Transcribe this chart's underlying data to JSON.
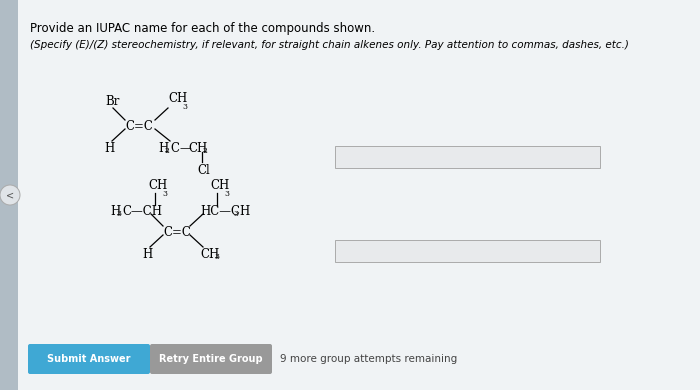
{
  "title_line1": "Provide an IUPAC name for each of the compounds shown.",
  "title_line2": "(Specify (E)/(Z) stereochemistry, if relevant, for straight chain alkenes only. Pay attention to commas, dashes, etc.)",
  "bg_color": "#c8cfd6",
  "panel_color": "#f0f3f5",
  "submit_btn_color": "#3fa8d4",
  "retry_btn_color": "#999999",
  "submit_btn_text": "Submit Answer",
  "retry_btn_text": "Retry Entire Group",
  "footer_text": "9 more group attempts remaining"
}
